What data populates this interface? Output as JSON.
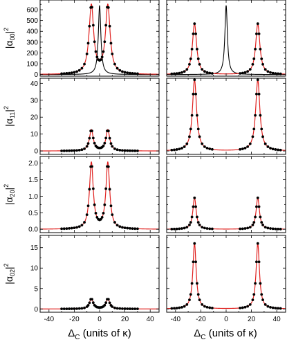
{
  "figure": {
    "x_axis_label": "Δ",
    "x_axis_label_sub": "C",
    "x_axis_label_rest": " (units of κ)",
    "x_ticks": [
      -40,
      -20,
      0,
      20,
      40
    ],
    "x_range": [
      -47,
      47
    ],
    "colors": {
      "theory_curve": "#e0201e",
      "markers": "#000000",
      "reference_curve": "#000000",
      "frame": "#000000"
    }
  },
  "chart_data": [
    {
      "type": "line",
      "row": 0,
      "column": "left",
      "ylabel_prefix": "|α",
      "ylabel_sub": "00",
      "ylabel_suffix": "|",
      "ylabel_sup": "2",
      "yticks": [
        0,
        100,
        200,
        300,
        400,
        500,
        600
      ],
      "ylim": [
        -15,
        690
      ],
      "xlim": [
        -47,
        47
      ],
      "peaks": {
        "amplitude": 635,
        "center": 6.5,
        "width": 2.2
      },
      "reference_curve": {
        "amplitude": 640,
        "center": 0,
        "width": 1.2
      },
      "markers_x": [
        -30,
        -28,
        -26,
        -24,
        -22,
        -20,
        -18,
        -16,
        -14,
        -12,
        -10,
        -9,
        -8,
        -7,
        -6,
        -5,
        -4,
        -3,
        -2,
        -1,
        0,
        1,
        2,
        3,
        4,
        5,
        6,
        7,
        8,
        9,
        10,
        12,
        14,
        16,
        18,
        20,
        22,
        24,
        26,
        28,
        30
      ]
    },
    {
      "type": "line",
      "row": 0,
      "column": "right",
      "ylabel_prefix": "",
      "ylabel_sub": "",
      "ylabel_suffix": "",
      "ylabel_sup": "",
      "yticks": [
        0,
        100,
        200,
        300,
        400,
        500,
        600
      ],
      "ylim": [
        -15,
        690
      ],
      "xlim": [
        -47,
        47
      ],
      "peaks": {
        "amplitude": 470,
        "center": 25,
        "width": 2.0
      },
      "reference_curve": {
        "amplitude": 640,
        "center": 0,
        "width": 1.2
      },
      "markers_x": [
        -43,
        -41,
        -39,
        -37,
        -35,
        -33,
        -31,
        -29,
        -28,
        -27,
        -26,
        -25,
        -24,
        -23,
        -22,
        -21,
        -19,
        -17,
        -15,
        -13,
        -11,
        11,
        13,
        15,
        17,
        19,
        21,
        22,
        23,
        24,
        25,
        26,
        27,
        28,
        29,
        31,
        33,
        35,
        37,
        39,
        41,
        43
      ]
    },
    {
      "type": "line",
      "row": 1,
      "column": "left",
      "ylabel_prefix": "|α",
      "ylabel_sub": "11",
      "ylabel_suffix": "|",
      "ylabel_sup": "2",
      "yticks": [
        0,
        10,
        20,
        30,
        40
      ],
      "ylim": [
        -2,
        43
      ],
      "xlim": [
        -47,
        47
      ],
      "peaks": {
        "amplitude": 12.5,
        "center": 6.5,
        "width": 1.8
      },
      "reference_curve": null,
      "markers_x": [
        -30,
        -28,
        -26,
        -24,
        -22,
        -20,
        -18,
        -16,
        -14,
        -12,
        -10,
        -9,
        -8,
        -7,
        -6,
        -5,
        -4,
        -3,
        -2,
        -1,
        0,
        1,
        2,
        3,
        4,
        5,
        6,
        7,
        8,
        9,
        10,
        12,
        14,
        16,
        18,
        20,
        22,
        24,
        26,
        28,
        30
      ]
    },
    {
      "type": "line",
      "row": 1,
      "column": "right",
      "ylabel_prefix": "",
      "ylabel_sub": "",
      "ylabel_suffix": "",
      "ylabel_sup": "",
      "yticks": [
        0,
        10,
        20,
        30,
        40
      ],
      "ylim": [
        -2,
        43
      ],
      "xlim": [
        -47,
        47
      ],
      "peaks": {
        "amplitude": 42,
        "center": 25,
        "width": 2.0
      },
      "reference_curve": null,
      "markers_x": [
        -43,
        -41,
        -39,
        -37,
        -35,
        -33,
        -31,
        -29,
        -28,
        -27,
        -26,
        -25,
        -24,
        -23,
        -22,
        -21,
        -19,
        -17,
        -15,
        -13,
        -11,
        11,
        13,
        15,
        17,
        19,
        21,
        22,
        23,
        24,
        25,
        26,
        27,
        28,
        29,
        31,
        33,
        35,
        37,
        39,
        41,
        43
      ]
    },
    {
      "type": "line",
      "row": 2,
      "column": "left",
      "ylabel_prefix": "|α",
      "ylabel_sub": "20",
      "ylabel_suffix": "|",
      "ylabel_sup": "2",
      "yticks": [
        0.0,
        0.5,
        1.0,
        1.5,
        2.0
      ],
      "ytick_decimals": 1,
      "ylim": [
        -0.1,
        2.2
      ],
      "xlim": [
        -47,
        47
      ],
      "peaks": {
        "amplitude": 2.0,
        "center": 6.5,
        "width": 1.8
      },
      "reference_curve": null,
      "markers_x": [
        -30,
        -28,
        -26,
        -24,
        -22,
        -20,
        -18,
        -16,
        -14,
        -12,
        -10,
        -9,
        -8,
        -7,
        -6,
        -5,
        -4,
        -3,
        -2,
        -1,
        0,
        1,
        2,
        3,
        4,
        5,
        6,
        7,
        8,
        9,
        10,
        12,
        14,
        16,
        18,
        20,
        22,
        24,
        26,
        28,
        30
      ]
    },
    {
      "type": "line",
      "row": 2,
      "column": "right",
      "ylabel_prefix": "",
      "ylabel_sub": "",
      "ylabel_suffix": "",
      "ylabel_sup": "",
      "yticks": [
        0.0,
        0.5,
        1.0,
        1.5,
        2.0
      ],
      "ytick_decimals": 1,
      "ylim": [
        -0.1,
        2.2
      ],
      "xlim": [
        -47,
        47
      ],
      "peaks": {
        "amplitude": 0.95,
        "center": 25,
        "width": 1.6
      },
      "reference_curve": null,
      "markers_x": [
        -43,
        -41,
        -39,
        -37,
        -35,
        -33,
        -31,
        -29,
        -28,
        -27,
        -26,
        -25,
        -24,
        -23,
        -22,
        -21,
        -19,
        -17,
        -15,
        -13,
        -11,
        11,
        13,
        15,
        17,
        19,
        21,
        22,
        23,
        24,
        25,
        26,
        27,
        28,
        29,
        31,
        33,
        35,
        37,
        39,
        41,
        43
      ]
    },
    {
      "type": "line",
      "row": 3,
      "column": "left",
      "ylabel_prefix": "|α",
      "ylabel_sub": "02",
      "ylabel_suffix": "|",
      "ylabel_sup": "2",
      "yticks": [
        0,
        5,
        10,
        15
      ],
      "ylim": [
        -0.8,
        18
      ],
      "xlim": [
        -47,
        47
      ],
      "peaks": {
        "amplitude": 2.5,
        "center": 6.5,
        "width": 1.8
      },
      "reference_curve": null,
      "markers_x": [
        -30,
        -28,
        -26,
        -24,
        -22,
        -20,
        -18,
        -16,
        -14,
        -12,
        -10,
        -9,
        -8,
        -7,
        -6,
        -5,
        -4,
        -3,
        -2,
        -1,
        0,
        1,
        2,
        3,
        4,
        5,
        6,
        7,
        8,
        9,
        10,
        12,
        14,
        16,
        18,
        20,
        22,
        24,
        26,
        28,
        30
      ]
    },
    {
      "type": "line",
      "row": 3,
      "column": "right",
      "ylabel_prefix": "",
      "ylabel_sub": "",
      "ylabel_suffix": "",
      "ylabel_sup": "",
      "yticks": [
        0,
        5,
        10,
        15
      ],
      "ylim": [
        -0.8,
        18
      ],
      "xlim": [
        -47,
        47
      ],
      "peaks": {
        "amplitude": 16,
        "center": 25,
        "width": 1.6
      },
      "reference_curve": null,
      "markers_x": [
        -43,
        -41,
        -39,
        -37,
        -35,
        -33,
        -31,
        -29,
        -28,
        -27,
        -26,
        -25,
        -24,
        -23,
        -22,
        -21,
        -19,
        -17,
        -15,
        -13,
        -11,
        11,
        13,
        15,
        17,
        19,
        21,
        22,
        23,
        24,
        25,
        26,
        27,
        28,
        29,
        31,
        33,
        35,
        37,
        39,
        41,
        43
      ]
    }
  ]
}
